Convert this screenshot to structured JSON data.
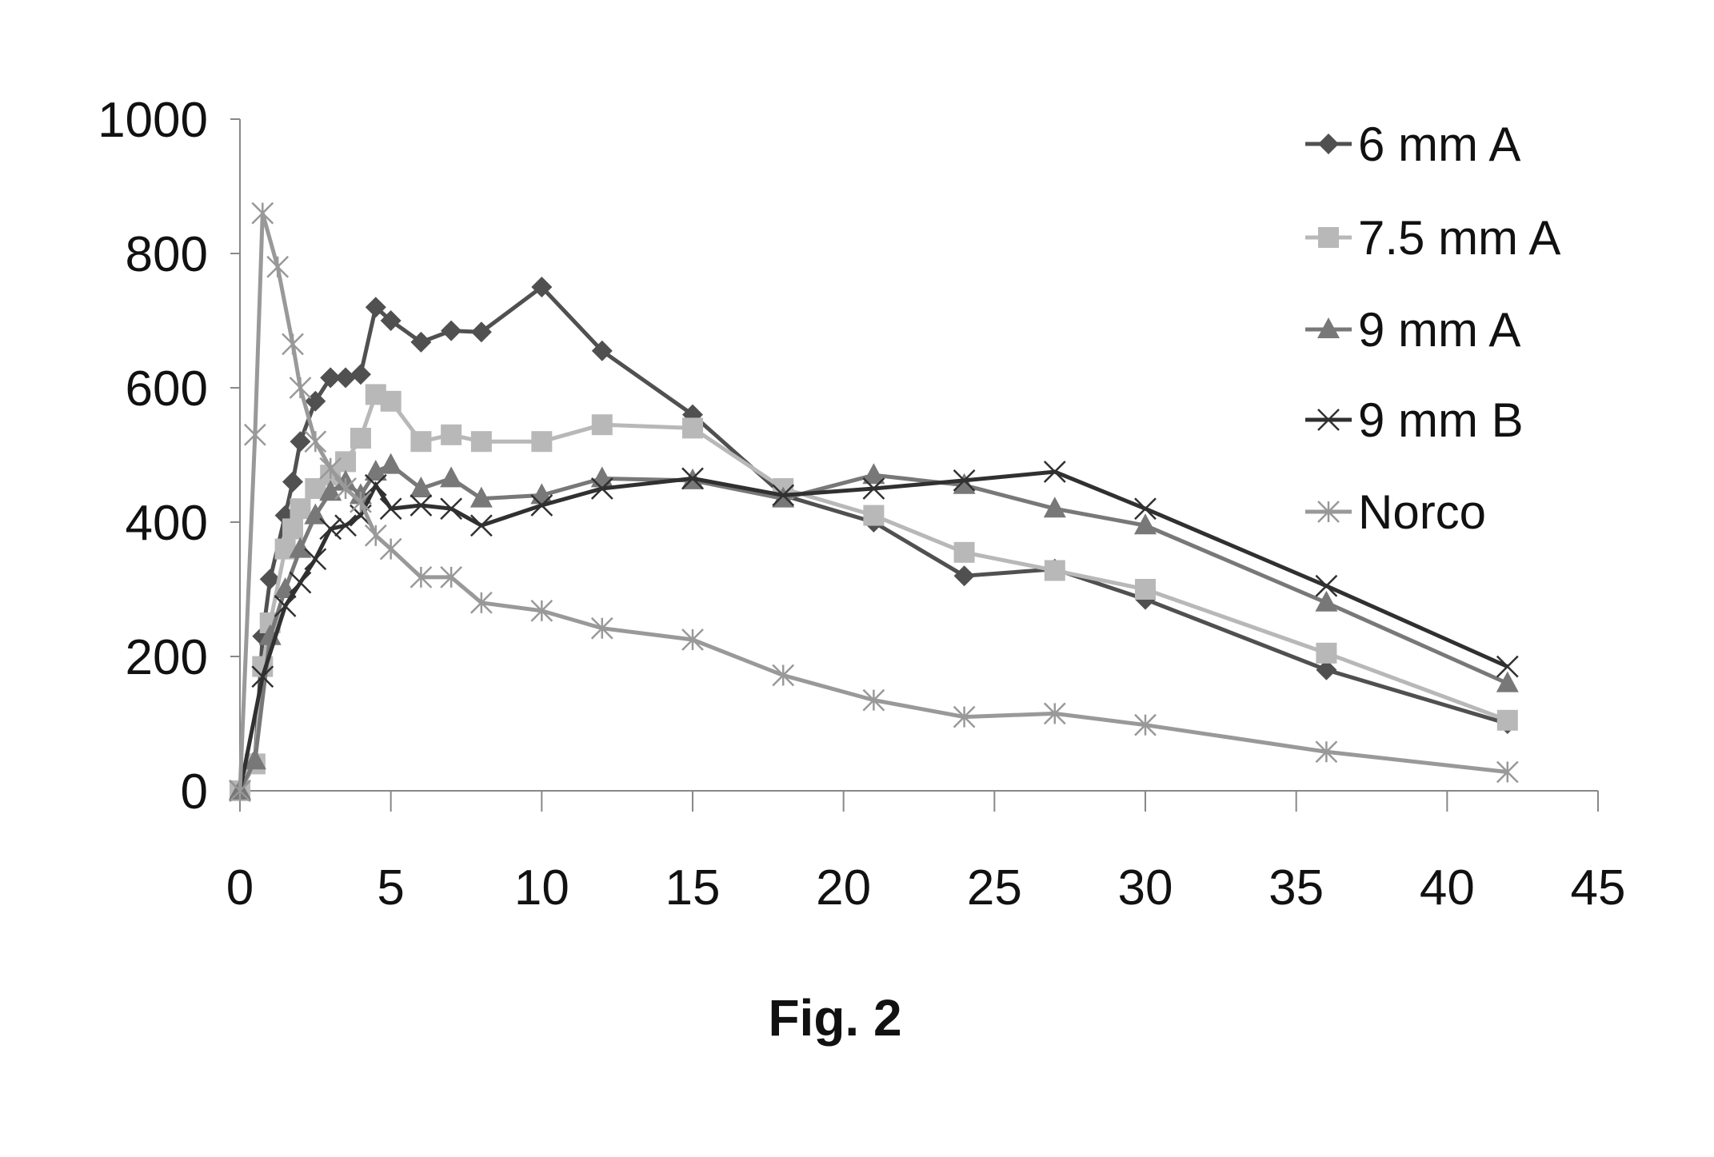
{
  "chart_data": {
    "type": "line",
    "title": "",
    "caption": "Fig. 2",
    "xlabel": "",
    "ylabel": "",
    "xlim": [
      0,
      45
    ],
    "ylim": [
      0,
      1000
    ],
    "xticks": [
      0,
      5,
      10,
      15,
      20,
      25,
      30,
      35,
      40,
      45
    ],
    "yticks": [
      0,
      200,
      400,
      600,
      800,
      1000
    ],
    "grid": false,
    "legend_position": "top-right",
    "series": [
      {
        "name": "6 mm A",
        "marker": "diamond",
        "color": "#505050",
        "x": [
          0,
          0.5,
          0.75,
          1,
          1.5,
          1.75,
          2,
          2.5,
          3,
          3.5,
          4,
          4.5,
          5,
          6,
          7,
          8,
          10,
          12,
          15,
          18,
          21,
          24,
          27,
          30,
          36,
          42
        ],
        "y": [
          0,
          45,
          230,
          315,
          410,
          460,
          520,
          580,
          615,
          615,
          620,
          720,
          700,
          668,
          685,
          683,
          750,
          655,
          560,
          440,
          400,
          320,
          330,
          285,
          180,
          100
        ]
      },
      {
        "name": "7.5 mm A",
        "marker": "square",
        "color": "#b8b8b8",
        "x": [
          0,
          0.5,
          0.75,
          1,
          1.5,
          1.75,
          2,
          2.5,
          3,
          3.5,
          4,
          4.5,
          5,
          6,
          7,
          8,
          10,
          12,
          15,
          18,
          21,
          24,
          27,
          30,
          36,
          42
        ],
        "y": [
          0,
          40,
          185,
          250,
          360,
          390,
          420,
          450,
          470,
          490,
          525,
          590,
          580,
          520,
          530,
          520,
          520,
          545,
          540,
          450,
          410,
          355,
          328,
          300,
          205,
          105
        ]
      },
      {
        "name": "9 mm A",
        "marker": "triangle",
        "color": "#787878",
        "x": [
          0,
          0.5,
          1,
          1.5,
          2,
          2.5,
          3,
          3.5,
          4,
          4.5,
          5,
          6,
          7,
          8,
          10,
          12,
          15,
          18,
          21,
          24,
          27,
          30,
          36,
          42
        ],
        "y": [
          0,
          45,
          230,
          300,
          360,
          410,
          445,
          460,
          440,
          475,
          485,
          450,
          465,
          435,
          440,
          465,
          462,
          435,
          470,
          455,
          420,
          395,
          280,
          160
        ]
      },
      {
        "name": "9 mm B",
        "marker": "x",
        "color": "#303030",
        "x": [
          0,
          0.75,
          1.5,
          2,
          2.5,
          3,
          3.5,
          4,
          4.5,
          5,
          6,
          7,
          8,
          10,
          12,
          15,
          18,
          21,
          24,
          27,
          30,
          36,
          42
        ],
        "y": [
          0,
          170,
          275,
          310,
          345,
          390,
          395,
          410,
          455,
          420,
          425,
          420,
          395,
          425,
          450,
          465,
          440,
          450,
          462,
          475,
          420,
          305,
          185
        ]
      },
      {
        "name": "Norco",
        "marker": "asterisk",
        "color": "#999999",
        "x": [
          0,
          0.5,
          0.75,
          1.25,
          1.75,
          2,
          2.5,
          3,
          3.5,
          4,
          4.5,
          5,
          6,
          7,
          8,
          10,
          12,
          15,
          18,
          21,
          24,
          27,
          30,
          36,
          42
        ],
        "y": [
          0,
          530,
          860,
          780,
          665,
          600,
          520,
          480,
          450,
          430,
          380,
          360,
          318,
          318,
          280,
          268,
          242,
          225,
          172,
          135,
          110,
          115,
          98,
          58,
          28
        ]
      }
    ]
  }
}
